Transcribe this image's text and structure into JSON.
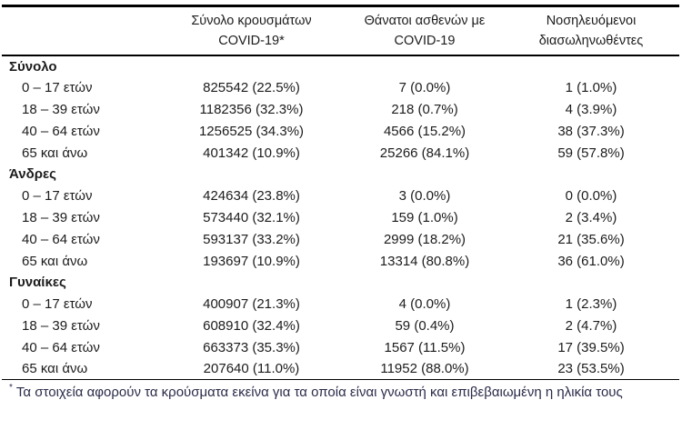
{
  "colors": {
    "background": "#ffffff",
    "text": "#1c1c1c",
    "border": "#000000",
    "footnote_text": "#2b2b4a"
  },
  "table": {
    "columns": [
      {
        "line1": "",
        "line2": ""
      },
      {
        "line1": "Σύνολο κρουσμάτων",
        "line2": "COVID-19*"
      },
      {
        "line1": "Θάνατοι ασθενών με",
        "line2": "COVID-19"
      },
      {
        "line1": "Νοσηλευόμενοι",
        "line2": "διασωληνωθέντες"
      }
    ],
    "groups": [
      {
        "label": "Σύνολο",
        "rows": [
          {
            "age": "0 – 17 ετών",
            "cases": "825542 (22.5%)",
            "deaths": "7 (0.0%)",
            "intubated": "1 (1.0%)"
          },
          {
            "age": "18 – 39 ετών",
            "cases": "1182356 (32.3%)",
            "deaths": "218 (0.7%)",
            "intubated": "4 (3.9%)"
          },
          {
            "age": "40 – 64 ετών",
            "cases": "1256525 (34.3%)",
            "deaths": "4566 (15.2%)",
            "intubated": "38 (37.3%)"
          },
          {
            "age": "65 και άνω",
            "cases": "401342 (10.9%)",
            "deaths": "25266 (84.1%)",
            "intubated": "59 (57.8%)"
          }
        ]
      },
      {
        "label": "Άνδρες",
        "rows": [
          {
            "age": "0 – 17 ετών",
            "cases": "424634 (23.8%)",
            "deaths": "3 (0.0%)",
            "intubated": "0 (0.0%)"
          },
          {
            "age": "18 – 39 ετών",
            "cases": "573440 (32.1%)",
            "deaths": "159 (1.0%)",
            "intubated": "2 (3.4%)"
          },
          {
            "age": "40 – 64 ετών",
            "cases": "593137 (33.2%)",
            "deaths": "2999 (18.2%)",
            "intubated": "21 (35.6%)"
          },
          {
            "age": "65 και άνω",
            "cases": "193697 (10.9%)",
            "deaths": "13314 (80.8%)",
            "intubated": "36 (61.0%)"
          }
        ]
      },
      {
        "label": "Γυναίκες",
        "rows": [
          {
            "age": "0 – 17 ετών",
            "cases": "400907 (21.3%)",
            "deaths": "4 (0.0%)",
            "intubated": "1 (2.3%)"
          },
          {
            "age": "18 – 39 ετών",
            "cases": "608910 (32.4%)",
            "deaths": "59 (0.4%)",
            "intubated": "2 (4.7%)"
          },
          {
            "age": "40 – 64 ετών",
            "cases": "663373 (35.3%)",
            "deaths": "1567 (11.5%)",
            "intubated": "17 (39.5%)"
          },
          {
            "age": "65 και άνω",
            "cases": "207640 (11.0%)",
            "deaths": "11952 (88.0%)",
            "intubated": "23 (53.5%)"
          }
        ]
      }
    ],
    "footnote": {
      "marker": "*",
      "text": "Τα στοιχεία αφορούν τα κρούσματα εκείνα για τα οποία είναι γνωστή και επιβεβαιωμένη η ηλικία τους"
    }
  }
}
